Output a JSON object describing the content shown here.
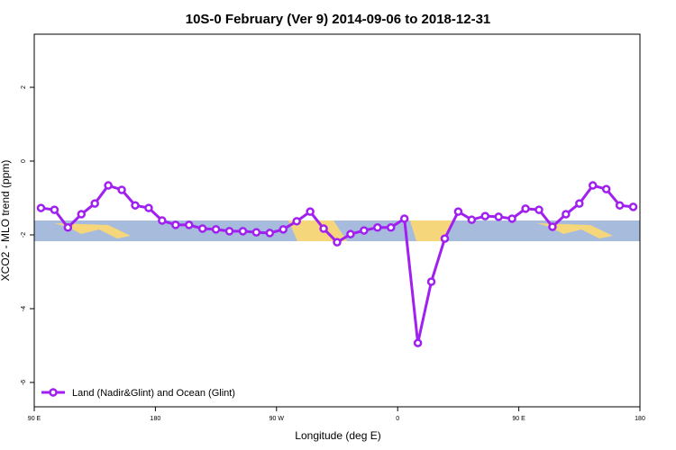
{
  "chart_data": {
    "type": "line",
    "title": "10S-0 February (Ver 9)   2014-09-06 to 2018-12-31",
    "xlabel": "Longitude (deg E)",
    "ylabel": "XCO2 - MLO trend (ppm)",
    "x": [
      95,
      105,
      115,
      125,
      135,
      145,
      155,
      165,
      175,
      185,
      195,
      205,
      215,
      225,
      235,
      245,
      255,
      265,
      275,
      285,
      295,
      305,
      315,
      325,
      335,
      345,
      355,
      365,
      375,
      385,
      395,
      405,
      415,
      425,
      435,
      445,
      455,
      465,
      475,
      485,
      495,
      505,
      515,
      525,
      535
    ],
    "series": [
      {
        "name": "Land (Nadir&Glint) and Ocean (Glint)",
        "color": "#a020f0",
        "values": [
          -1.27,
          -1.32,
          -1.8,
          -1.44,
          -1.15,
          -0.66,
          -0.78,
          -1.2,
          -1.27,
          -1.61,
          -1.73,
          -1.73,
          -1.83,
          -1.85,
          -1.9,
          -1.9,
          -1.93,
          -1.95,
          -1.85,
          -1.63,
          -1.37,
          -1.83,
          -2.2,
          -1.98,
          -1.88,
          -1.8,
          -1.8,
          -1.56,
          -4.93,
          -3.27,
          -2.1,
          -1.37,
          -1.59,
          -1.49,
          -1.51,
          -1.56,
          -1.29,
          -1.32,
          -1.78,
          -1.44,
          -1.15,
          -0.66,
          -0.76,
          -1.2,
          -1.24
        ]
      }
    ],
    "xlim": [
      90,
      540
    ],
    "xticks": [
      {
        "value": 90,
        "label": "90 E"
      },
      180,
      {
        "value": 270,
        "label": "90 W"
      },
      {
        "value": 360,
        "label": "0"
      },
      {
        "value": 450,
        "label": "90 E"
      },
      {
        "value": 540,
        "label": "180"
      }
    ],
    "ylim": [
      -6.66,
      3.44
    ],
    "yticks": [
      -6,
      -4,
      -2,
      0,
      2
    ],
    "legend": "bottom-left"
  }
}
